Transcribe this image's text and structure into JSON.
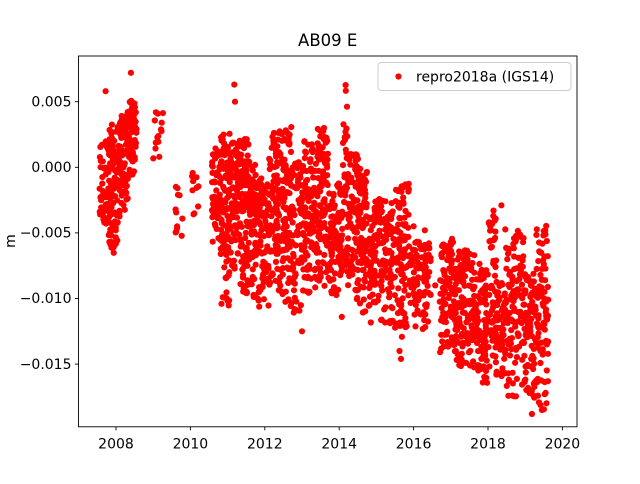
{
  "title": "AB09 E",
  "ylabel": "m",
  "legend": {
    "label": "repro2018a (IGS14)"
  },
  "colors": {
    "points": "#ff0000",
    "axes": "#000000",
    "legend_border": "#cccccc",
    "background": "#ffffff"
  },
  "chart_data": {
    "type": "scatter",
    "title": "AB09 E",
    "xlabel": "",
    "ylabel": "m",
    "series_name": "repro2018a (IGS14)",
    "legend_position": "upper right",
    "grid": false,
    "marker": {
      "style": "circle",
      "color": "#ff0000",
      "radius_px": 3.1
    },
    "xlim": [
      2007.0,
      2020.4
    ],
    "ylim": [
      -0.0198,
      0.0085
    ],
    "xticks": [
      2008,
      2010,
      2012,
      2014,
      2016,
      2018,
      2020
    ],
    "xtick_labels": [
      "2008",
      "2010",
      "2012",
      "2014",
      "2016",
      "2018",
      "2020"
    ],
    "yticks": [
      0.005,
      0.0,
      -0.005,
      -0.01,
      -0.015
    ],
    "ytick_labels": [
      "0.005",
      "0.000",
      "−0.005",
      "−0.010",
      "−0.015"
    ],
    "units": "m",
    "trend_description": "East-component GPS daily positions declining from ~0.000 m in 2008 to ~-0.013 m by 2019, in seasonal dense columns with winter gaps",
    "clusters_format": [
      "t_start_yr",
      "t_end_yr",
      "v_top_m",
      "v_bottom_m",
      "n_points"
    ],
    "clusters": [
      [
        2007.55,
        2007.8,
        0.002,
        -0.0048,
        45
      ],
      [
        2007.8,
        2008.05,
        0.0033,
        -0.0066,
        85
      ],
      [
        2008.05,
        2008.32,
        0.0043,
        -0.0038,
        85
      ],
      [
        2008.32,
        2008.56,
        0.0051,
        -0.0012,
        70
      ],
      [
        2009.0,
        2009.26,
        0.0047,
        0.0,
        14
      ],
      [
        2009.6,
        2009.82,
        -0.0014,
        -0.0053,
        12
      ],
      [
        2010.04,
        2010.22,
        -0.0004,
        -0.0038,
        10
      ],
      [
        2010.58,
        2010.82,
        0.0016,
        -0.0068,
        60
      ],
      [
        2010.82,
        2011.06,
        0.0028,
        -0.0106,
        90
      ],
      [
        2011.06,
        2011.3,
        0.0021,
        -0.0082,
        75
      ],
      [
        2011.3,
        2011.56,
        0.0022,
        -0.0096,
        95
      ],
      [
        2011.56,
        2011.76,
        0.0006,
        -0.0101,
        70
      ],
      [
        2011.76,
        2012.1,
        -0.0008,
        -0.0109,
        85
      ],
      [
        2012.1,
        2012.46,
        0.003,
        -0.0101,
        110
      ],
      [
        2012.46,
        2012.72,
        0.0033,
        -0.0106,
        95
      ],
      [
        2012.72,
        2013.06,
        0.0006,
        -0.0111,
        85
      ],
      [
        2013.06,
        2013.42,
        0.0021,
        -0.0096,
        100
      ],
      [
        2013.42,
        2013.7,
        0.0032,
        -0.0091,
        90
      ],
      [
        2013.7,
        2013.96,
        -0.0009,
        -0.0099,
        60
      ],
      [
        2013.96,
        2014.1,
        -0.0012,
        -0.0096,
        40
      ],
      [
        2014.1,
        2014.22,
        0.0064,
        -0.0085,
        35
      ],
      [
        2014.22,
        2014.52,
        0.0011,
        -0.0101,
        90
      ],
      [
        2014.52,
        2014.76,
        0.0001,
        -0.0111,
        80
      ],
      [
        2014.76,
        2015.1,
        -0.0024,
        -0.0119,
        80
      ],
      [
        2015.1,
        2015.46,
        -0.0025,
        -0.0121,
        80
      ],
      [
        2015.46,
        2015.9,
        -0.0011,
        -0.0132,
        100
      ],
      [
        2015.9,
        2016.46,
        -0.0056,
        -0.0126,
        90
      ],
      [
        2016.7,
        2017.12,
        -0.0054,
        -0.0141,
        95
      ],
      [
        2017.12,
        2017.46,
        -0.0061,
        -0.0152,
        90
      ],
      [
        2017.46,
        2017.78,
        -0.0066,
        -0.0156,
        70
      ],
      [
        2017.78,
        2018.02,
        -0.0078,
        -0.0166,
        60
      ],
      [
        2018.02,
        2018.22,
        -0.0031,
        -0.0152,
        50
      ],
      [
        2018.22,
        2018.46,
        -0.0086,
        -0.0161,
        50
      ],
      [
        2018.46,
        2018.96,
        -0.0047,
        -0.0175,
        110
      ],
      [
        2018.96,
        2019.3,
        -0.0081,
        -0.0176,
        80
      ],
      [
        2019.3,
        2019.62,
        -0.0044,
        -0.0186,
        90
      ]
    ],
    "outliers": [
      [
        2007.72,
        0.0058
      ],
      [
        2008.4,
        0.0072
      ],
      [
        2011.18,
        0.0063
      ],
      [
        2011.2,
        0.005
      ],
      [
        2013.0,
        -0.0125
      ],
      [
        2014.07,
        -0.0114
      ],
      [
        2015.62,
        -0.014
      ],
      [
        2015.66,
        -0.0146
      ],
      [
        2016.0,
        -0.0045
      ],
      [
        2016.3,
        -0.0048
      ],
      [
        2016.58,
        -0.009
      ],
      [
        2018.36,
        -0.0029
      ],
      [
        2019.18,
        -0.0188
      ],
      [
        2019.45,
        -0.0185
      ]
    ]
  }
}
